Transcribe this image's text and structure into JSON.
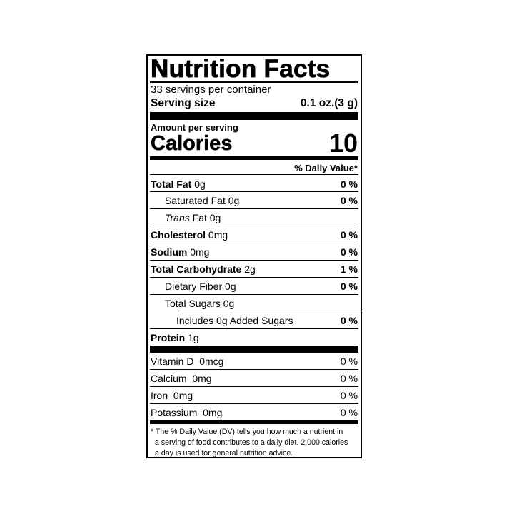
{
  "title": "Nutrition Facts",
  "servings": "33 servings per container",
  "serving_size": {
    "label": "Serving size",
    "value": "0.1 oz.(3 g)"
  },
  "amount_per_serving": "Amount per serving",
  "calories": {
    "label": "Calories",
    "value": "10"
  },
  "dv_header": "% Daily Value*",
  "nutrients": [
    {
      "name": "Total Fat",
      "amount": "0g",
      "dv": "0 %"
    },
    {
      "name": "Saturated Fat",
      "amount": "0g",
      "dv": "0 %"
    },
    {
      "name": "Trans",
      "name_suffix": "Fat",
      "amount": "0g",
      "dv": ""
    },
    {
      "name": "Cholesterol",
      "amount": "0mg",
      "dv": "0 %"
    },
    {
      "name": "Sodium",
      "amount": "0mg",
      "dv": "0 %"
    },
    {
      "name": "Total Carbohydrate",
      "amount": "2g",
      "dv": "1 %"
    },
    {
      "name": "Dietary Fiber",
      "amount": "0g",
      "dv": "0 %"
    },
    {
      "name": "Total Sugars",
      "amount": "0g",
      "dv": ""
    },
    {
      "name": "Includes 0g Added Sugars",
      "amount": "",
      "dv": "0 %"
    },
    {
      "name": "Protein",
      "amount": "1g",
      "dv": ""
    }
  ],
  "vitamins": [
    {
      "name": "Vitamin D",
      "amount": "0mcg",
      "dv": "0 %"
    },
    {
      "name": "Calcium",
      "amount": "0mg",
      "dv": "0 %"
    },
    {
      "name": "Iron",
      "amount": "0mg",
      "dv": "0 %"
    },
    {
      "name": "Potassium",
      "amount": "0mg",
      "dv": "0 %"
    }
  ],
  "footnote": [
    "* The % Daily Value (DV) tells you how much a nutrient in",
    "a serving of food contributes to a daily diet. 2,000 calories",
    "a day is used for general nutrition advice."
  ]
}
